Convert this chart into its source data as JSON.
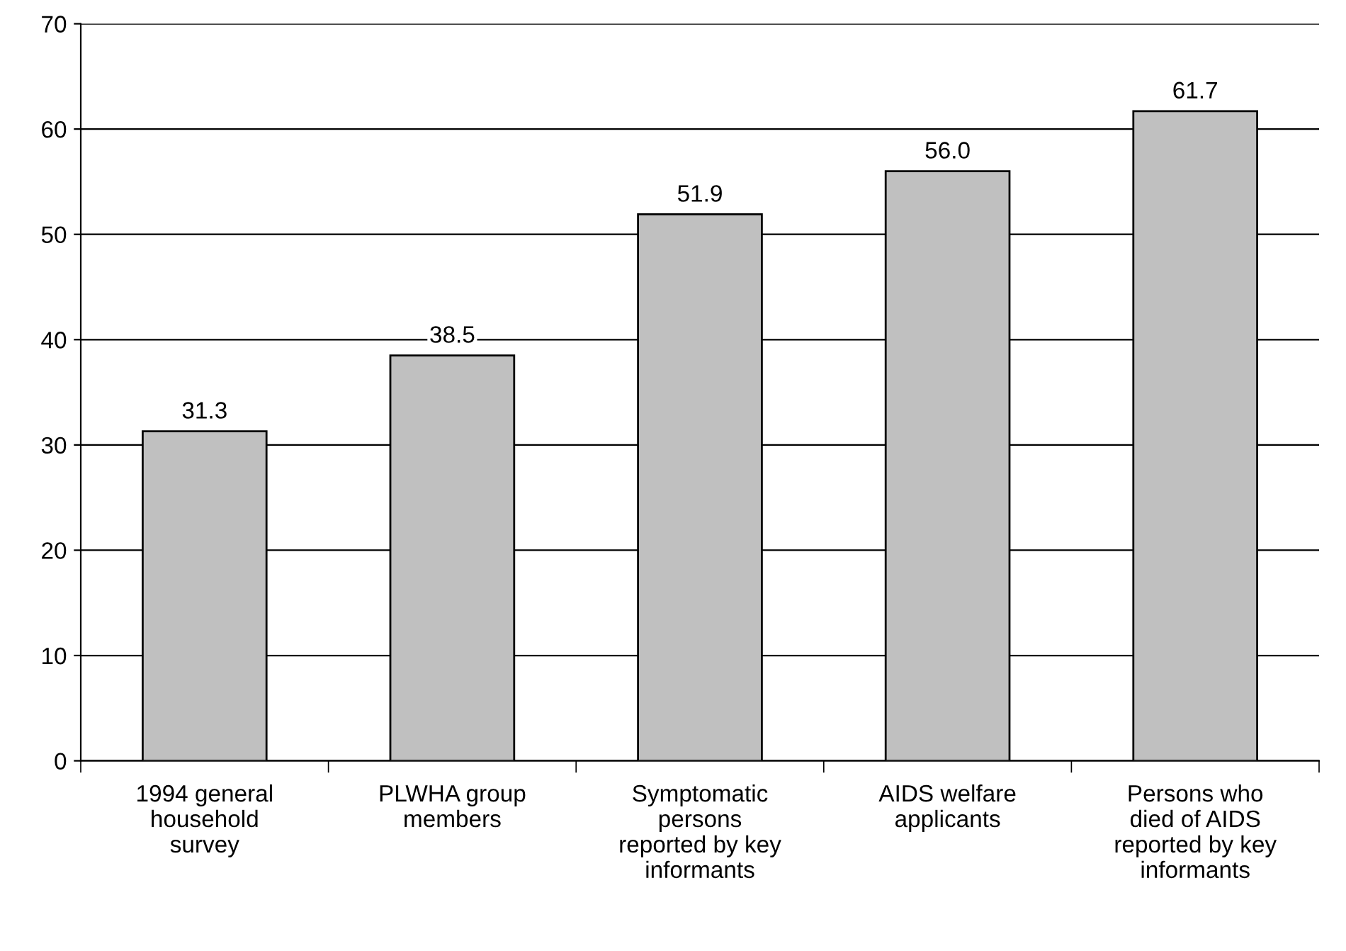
{
  "chart_data": {
    "type": "bar",
    "categories": [
      "1994 general\nhousehold\nsurvey",
      "PLWHA group\nmembers",
      "Symptomatic\npersons\nreported by key\ninformants",
      "AIDS welfare\napplicants",
      "Persons who\ndied of AIDS\nreported by key\ninformants"
    ],
    "values": [
      31.3,
      38.5,
      51.9,
      56.0,
      61.7
    ],
    "value_labels": [
      "31.3",
      "38.5",
      "51.9",
      "56.0",
      "61.7"
    ],
    "color": "#c0c0c0",
    "ylim": [
      0,
      70
    ],
    "yticks": [
      0,
      10,
      20,
      30,
      40,
      50,
      60,
      70
    ],
    "grid": "y"
  }
}
